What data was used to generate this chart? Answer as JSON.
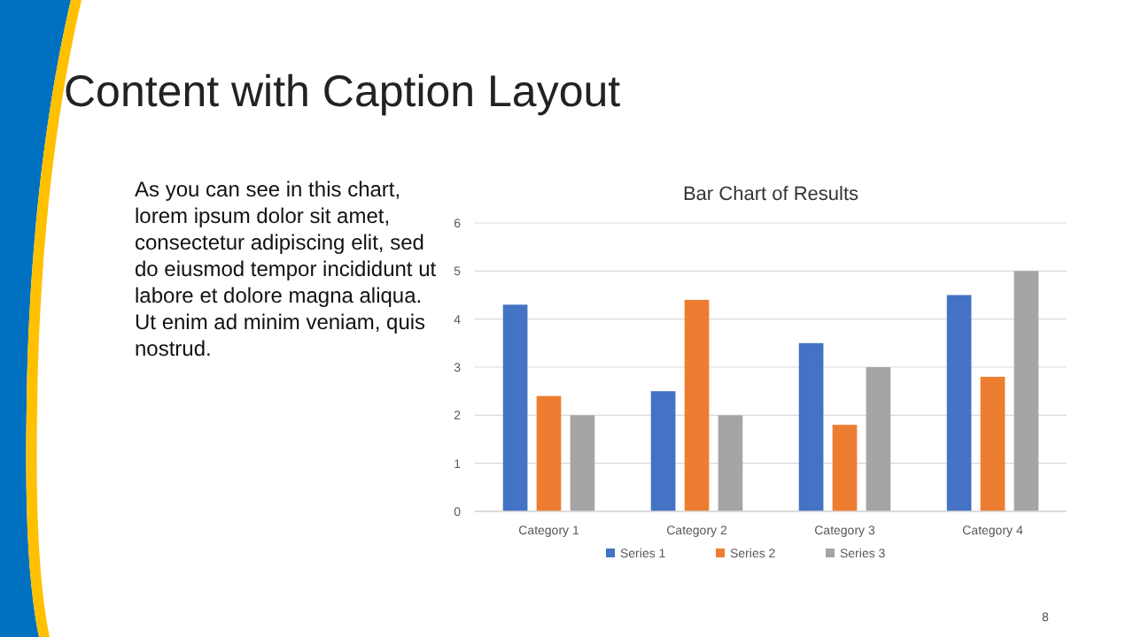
{
  "chart_data": {
    "type": "bar",
    "title": "Bar Chart of Results",
    "annotations": [
      "Content with Caption Layout",
      "As you can see in this chart, lorem ipsum dolor sit amet, consectetur adipiscing elit, sed do eiusmod tempor incididunt ut labore et dolore magna aliqua. Ut enim ad minim veniam, quis nostrud.",
      "8"
    ],
    "categories": [
      "Category 1",
      "Category 2",
      "Category 3",
      "Category 4"
    ],
    "series": [
      {
        "name": "Series 1",
        "color": "#4472c4",
        "values": [
          4.3,
          2.5,
          3.5,
          4.5
        ]
      },
      {
        "name": "Series 2",
        "color": "#ed7d31",
        "values": [
          2.4,
          4.4,
          1.8,
          2.8
        ]
      },
      {
        "name": "Series 3",
        "color": "#a5a5a5",
        "values": [
          2,
          2,
          3,
          5
        ]
      }
    ],
    "ylim": [
      0,
      6
    ],
    "yticks": [
      0,
      1,
      2,
      3,
      4,
      5,
      6
    ],
    "grid": "y",
    "legend": "bottom"
  }
}
